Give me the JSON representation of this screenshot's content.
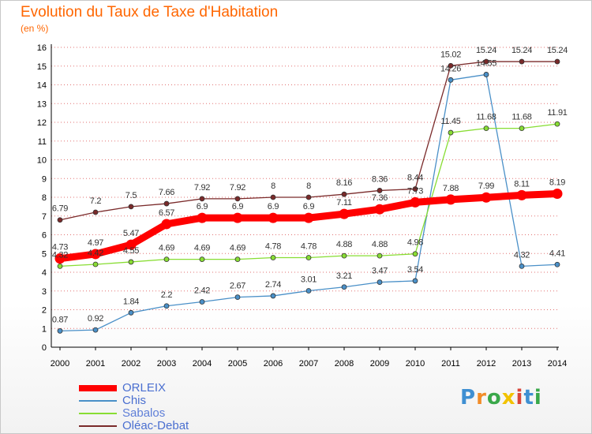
{
  "header": {
    "title": "Evolution du Taux de Taxe d'Habitation",
    "subtitle": "(en %)"
  },
  "logo": {
    "text": "Proxiti",
    "letter_colors": [
      "#3f8fd2",
      "#f28c28",
      "#3aa84a",
      "#f2c200",
      "#d9453a",
      "#3f8fd2",
      "#3aa84a"
    ]
  },
  "colors": {
    "title": "#ff6600",
    "axis": "#000000",
    "grid": "#cc0000",
    "label_text": "#333333"
  },
  "chart_data": {
    "type": "line",
    "x": [
      "2000",
      "2001",
      "2002",
      "2003",
      "2004",
      "2005",
      "2006",
      "2007",
      "2008",
      "2009",
      "2010",
      "2011",
      "2012",
      "2013",
      "2014"
    ],
    "ylim": [
      0,
      16
    ],
    "y_ticks": [
      "0",
      "1",
      "2",
      "3",
      "4",
      "5",
      "6",
      "7",
      "8",
      "9",
      "10",
      "11",
      "12",
      "13",
      "14",
      "15",
      "16"
    ],
    "grid": "dotted horizontal",
    "legend_position": "bottom-left",
    "series": [
      {
        "name": "ORLEIX",
        "color": "#ff0000",
        "values": [
          4.73,
          4.97,
          5.47,
          6.57,
          6.9,
          6.9,
          6.9,
          6.9,
          7.11,
          7.36,
          7.73,
          7.88,
          7.99,
          8.11,
          8.19
        ],
        "labels": [
          "4.73",
          "4.97",
          "5.47",
          "6.57",
          "6.9",
          "6.9",
          "6.9",
          "6.9",
          "7.11",
          "7.36",
          "7.73",
          "7.88",
          "7.99",
          "8.11",
          "8.19"
        ]
      },
      {
        "name": "Chis",
        "color": "#4a90c8",
        "values": [
          0.87,
          0.92,
          1.84,
          2.2,
          2.42,
          2.67,
          2.74,
          3.01,
          3.21,
          3.47,
          3.54,
          14.26,
          14.55,
          4.32,
          4.41
        ],
        "labels": [
          "0.87",
          "0.92",
          "1.84",
          "2.2",
          "2.42",
          "2.67",
          "2.74",
          "3.01",
          "3.21",
          "3.47",
          "3.54",
          "14.26",
          "14.55",
          "4.32",
          "4.41"
        ]
      },
      {
        "name": "Sabalos",
        "color": "#88dd33",
        "values": [
          4.32,
          4.42,
          4.55,
          4.69,
          4.69,
          4.69,
          4.78,
          4.78,
          4.88,
          4.88,
          4.98,
          11.45,
          11.68,
          11.68,
          11.91
        ],
        "labels": [
          "4.32",
          "4.42",
          "4.55",
          "4.69",
          "4.69",
          "4.69",
          "4.78",
          "4.78",
          "4.88",
          "4.88",
          "4.98",
          "11.45",
          "11.68",
          "11.68",
          "11.91"
        ]
      },
      {
        "name": "Oléac-Debat",
        "color": "#7a2a2a",
        "values": [
          6.79,
          7.2,
          7.5,
          7.66,
          7.92,
          7.92,
          8,
          8,
          8.16,
          8.36,
          8.44,
          15.02,
          15.24,
          15.24,
          15.24
        ],
        "labels": [
          "6.79",
          "7.2",
          "7.5",
          "7.66",
          "7.92",
          "7.92",
          "8",
          "8",
          "8.16",
          "8.36",
          "8.44",
          "15.02",
          "15.24",
          "15.24",
          "15.24"
        ]
      }
    ]
  }
}
